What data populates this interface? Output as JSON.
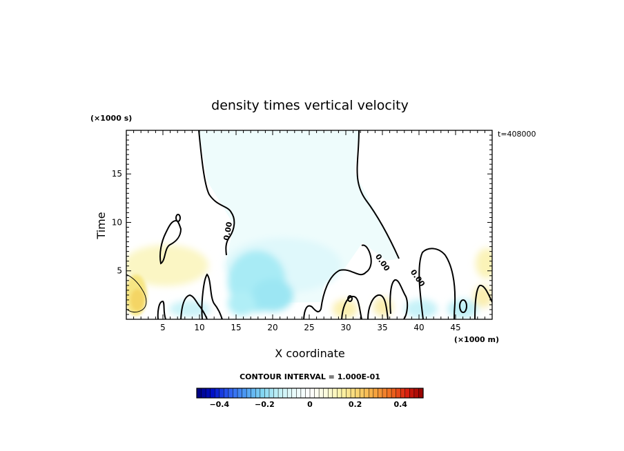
{
  "chart_data": {
    "type": "heatmap",
    "title": "density times vertical velocity",
    "xlabel": "X coordinate",
    "ylabel": "Time",
    "x_unit": "(×1000 m)",
    "y_unit": "(×1000 s)",
    "time_stamp": "t=408000",
    "xlim": [
      0,
      50
    ],
    "ylim": [
      0,
      19.5
    ],
    "x_ticks": [
      5,
      10,
      15,
      20,
      25,
      30,
      35,
      40,
      45
    ],
    "y_ticks": [
      5,
      10,
      15
    ],
    "grid": false,
    "contour_interval_text": "CONTOUR INTERVAL = 1.000E-01",
    "contour_labels": [
      {
        "text": "0.00",
        "x": 14.0,
        "y": 8.1
      },
      {
        "text": "0.00",
        "x": 34.0,
        "y": 6.5
      },
      {
        "text": "0.00",
        "x": 38.8,
        "y": 4.9
      }
    ],
    "colorbar": {
      "vmin": -0.5,
      "vmax": 0.5,
      "ticks": [
        -0.4,
        -0.2,
        0,
        0.2,
        0.4
      ],
      "tick_labels": [
        "−0.4",
        "−0.2",
        "0",
        "0.2",
        "0.4"
      ],
      "colors": [
        "#00007a",
        "#0010c8",
        "#2d5df0",
        "#4c9bf2",
        "#7fd4f2",
        "#bff0f5",
        "#e8fbfb",
        "#ffffff",
        "#fbfbdc",
        "#fbf2a6",
        "#f8d36e",
        "#f5a640",
        "#ef6b1f",
        "#d92010",
        "#900000"
      ]
    },
    "regions": [
      {
        "name": "positive patch near x=1–2",
        "x": [
          0,
          3
        ],
        "y": [
          0.5,
          5
        ],
        "value": 0.25
      },
      {
        "name": "weak positive band",
        "x": [
          0,
          11
        ],
        "y": [
          2,
          8
        ],
        "value": 0.06
      },
      {
        "name": "negative core",
        "x": [
          14,
          23
        ],
        "y": [
          0.5,
          8
        ],
        "value": -0.14
      },
      {
        "name": "weak negative upper plume",
        "x": [
          10,
          35
        ],
        "y": [
          5,
          19.5
        ],
        "value": -0.04
      },
      {
        "name": "weak positive near x=28",
        "x": [
          26,
          30
        ],
        "y": [
          0,
          2.5
        ],
        "value": 0.05
      },
      {
        "name": "negative patches near x=40–47",
        "x": [
          38,
          47
        ],
        "y": [
          0,
          2.5
        ],
        "value": -0.07
      },
      {
        "name": "positive right edge",
        "x": [
          47,
          50
        ],
        "y": [
          1,
          7
        ],
        "value": 0.07
      }
    ]
  }
}
